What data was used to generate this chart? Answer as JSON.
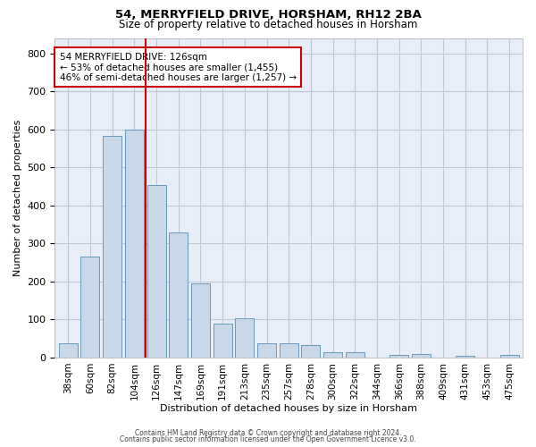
{
  "title": "54, MERRYFIELD DRIVE, HORSHAM, RH12 2BA",
  "subtitle": "Size of property relative to detached houses in Horsham",
  "xlabel": "Distribution of detached houses by size in Horsham",
  "ylabel": "Number of detached properties",
  "categories": [
    "38sqm",
    "60sqm",
    "82sqm",
    "104sqm",
    "126sqm",
    "147sqm",
    "169sqm",
    "191sqm",
    "213sqm",
    "235sqm",
    "257sqm",
    "278sqm",
    "300sqm",
    "322sqm",
    "344sqm",
    "366sqm",
    "388sqm",
    "409sqm",
    "431sqm",
    "453sqm",
    "475sqm"
  ],
  "values": [
    37,
    265,
    583,
    600,
    453,
    328,
    196,
    90,
    103,
    37,
    37,
    32,
    13,
    13,
    0,
    8,
    10,
    0,
    5,
    0,
    8
  ],
  "bar_color": "#c8d8e8",
  "bar_edge_color": "#6699bb",
  "red_line_x": 3.5,
  "red_line_color": "#cc0000",
  "annotation_text": "54 MERRYFIELD DRIVE: 126sqm\n← 53% of detached houses are smaller (1,455)\n46% of semi-detached houses are larger (1,257) →",
  "annotation_box_color": "#ffffff",
  "annotation_box_edge": "#cc0000",
  "ylim": [
    0,
    840
  ],
  "yticks": [
    0,
    100,
    200,
    300,
    400,
    500,
    600,
    700,
    800
  ],
  "grid_color": "#c0c8d8",
  "bg_color": "#e8eef8",
  "footer1": "Contains HM Land Registry data © Crown copyright and database right 2024.",
  "footer2": "Contains public sector information licensed under the Open Government Licence v3.0."
}
